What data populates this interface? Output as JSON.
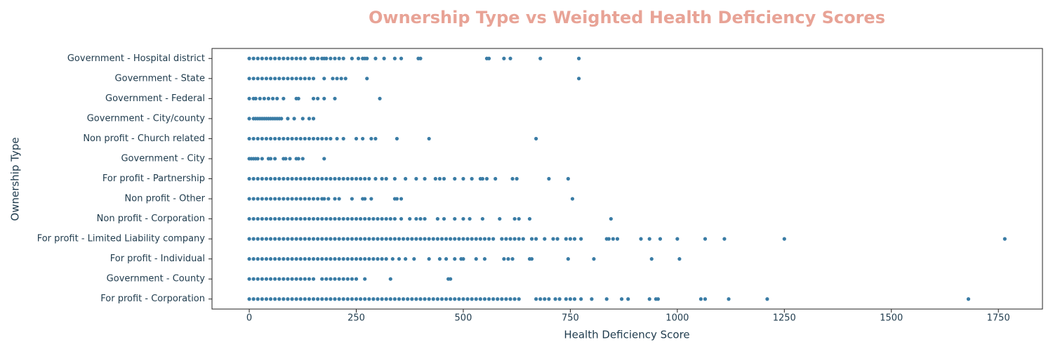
{
  "chart_data": {
    "type": "strip",
    "title": "Ownership Type vs Weighted Health Deficiency Scores",
    "xlabel": "Health Deficiency Score",
    "ylabel": "Ownership Type",
    "color": "#3a7ca5",
    "xlim": [
      -87,
      1853
    ],
    "xticks": [
      0,
      250,
      500,
      750,
      1000,
      1250,
      1500,
      1750
    ],
    "categories": [
      "Government - Hospital district",
      "Government - State",
      "Government - Federal",
      "Government - City/county",
      "Non profit - Church related",
      "Government - City",
      "For profit - Partnership",
      "Non profit - Other",
      "Non profit - Corporation",
      "For profit - Limited Liability company",
      "For profit - Individual",
      "Government - County",
      "For profit - Corporation"
    ],
    "values": [
      [
        0,
        10,
        20,
        30,
        40,
        50,
        60,
        70,
        80,
        90,
        100,
        110,
        120,
        130,
        145,
        150,
        160,
        170,
        175,
        180,
        190,
        200,
        210,
        220,
        240,
        255,
        265,
        270,
        275,
        295,
        315,
        340,
        355,
        395,
        400,
        555,
        560,
        595,
        610,
        680,
        770
      ],
      [
        0,
        10,
        20,
        30,
        40,
        50,
        60,
        70,
        80,
        90,
        100,
        110,
        120,
        130,
        140,
        150,
        175,
        195,
        205,
        215,
        225,
        275,
        770
      ],
      [
        0,
        10,
        15,
        25,
        35,
        45,
        55,
        65,
        80,
        110,
        115,
        150,
        160,
        175,
        200,
        305
      ],
      [
        0,
        10,
        15,
        20,
        25,
        30,
        35,
        40,
        45,
        50,
        55,
        60,
        65,
        70,
        75,
        90,
        105,
        125,
        140,
        150
      ],
      [
        0,
        10,
        20,
        30,
        40,
        50,
        60,
        70,
        80,
        90,
        100,
        110,
        120,
        130,
        140,
        150,
        160,
        170,
        180,
        190,
        205,
        220,
        250,
        265,
        285,
        295,
        345,
        420,
        670
      ],
      [
        0,
        5,
        10,
        15,
        20,
        30,
        45,
        50,
        60,
        80,
        85,
        95,
        110,
        115,
        125,
        175
      ],
      [
        0,
        10,
        20,
        30,
        40,
        50,
        60,
        70,
        80,
        90,
        100,
        110,
        120,
        130,
        140,
        150,
        160,
        170,
        180,
        190,
        200,
        210,
        220,
        230,
        240,
        250,
        260,
        270,
        280,
        295,
        310,
        320,
        340,
        365,
        390,
        410,
        435,
        445,
        455,
        480,
        500,
        520,
        540,
        545,
        555,
        575,
        615,
        625,
        700,
        745
      ],
      [
        0,
        10,
        20,
        30,
        40,
        50,
        60,
        70,
        80,
        90,
        100,
        110,
        120,
        130,
        140,
        150,
        160,
        170,
        175,
        185,
        200,
        210,
        240,
        265,
        270,
        285,
        340,
        345,
        355,
        755
      ],
      [
        0,
        10,
        20,
        30,
        40,
        50,
        60,
        70,
        80,
        90,
        100,
        110,
        120,
        130,
        140,
        150,
        160,
        170,
        180,
        190,
        200,
        210,
        220,
        230,
        240,
        250,
        260,
        270,
        280,
        290,
        300,
        310,
        320,
        330,
        340,
        355,
        375,
        390,
        400,
        410,
        440,
        455,
        480,
        500,
        515,
        545,
        585,
        620,
        630,
        655,
        845
      ],
      [
        0,
        10,
        20,
        30,
        40,
        50,
        60,
        70,
        80,
        90,
        100,
        110,
        120,
        130,
        140,
        150,
        160,
        170,
        180,
        190,
        200,
        210,
        220,
        230,
        240,
        250,
        260,
        270,
        280,
        290,
        300,
        310,
        320,
        330,
        340,
        350,
        360,
        370,
        380,
        390,
        400,
        410,
        420,
        430,
        440,
        450,
        460,
        470,
        480,
        490,
        500,
        510,
        520,
        530,
        540,
        550,
        560,
        570,
        590,
        600,
        610,
        620,
        630,
        640,
        660,
        670,
        690,
        710,
        720,
        740,
        750,
        760,
        775,
        835,
        840,
        850,
        860,
        915,
        935,
        960,
        1000,
        1065,
        1110,
        1250,
        1765
      ],
      [
        0,
        10,
        20,
        30,
        40,
        50,
        60,
        70,
        80,
        90,
        100,
        110,
        120,
        130,
        140,
        150,
        160,
        170,
        180,
        190,
        200,
        210,
        220,
        230,
        240,
        250,
        260,
        270,
        280,
        290,
        300,
        310,
        320,
        335,
        350,
        365,
        385,
        420,
        445,
        460,
        480,
        495,
        500,
        530,
        550,
        595,
        605,
        615,
        655,
        660,
        745,
        805,
        940,
        1005
      ],
      [
        0,
        10,
        20,
        30,
        40,
        50,
        60,
        70,
        80,
        90,
        100,
        110,
        120,
        130,
        140,
        150,
        170,
        180,
        190,
        200,
        210,
        220,
        230,
        240,
        250,
        270,
        330,
        465,
        470
      ],
      [
        0,
        10,
        20,
        30,
        40,
        50,
        60,
        70,
        80,
        90,
        100,
        110,
        120,
        130,
        140,
        150,
        160,
        170,
        180,
        190,
        200,
        210,
        220,
        230,
        240,
        250,
        260,
        270,
        280,
        290,
        300,
        310,
        320,
        330,
        340,
        350,
        360,
        370,
        380,
        390,
        400,
        410,
        420,
        430,
        440,
        450,
        460,
        470,
        480,
        490,
        500,
        510,
        520,
        530,
        540,
        550,
        560,
        570,
        580,
        590,
        600,
        610,
        620,
        630,
        670,
        680,
        690,
        700,
        715,
        725,
        740,
        750,
        760,
        775,
        800,
        835,
        870,
        885,
        935,
        950,
        955,
        1055,
        1065,
        1120,
        1210,
        1680
      ]
    ]
  }
}
